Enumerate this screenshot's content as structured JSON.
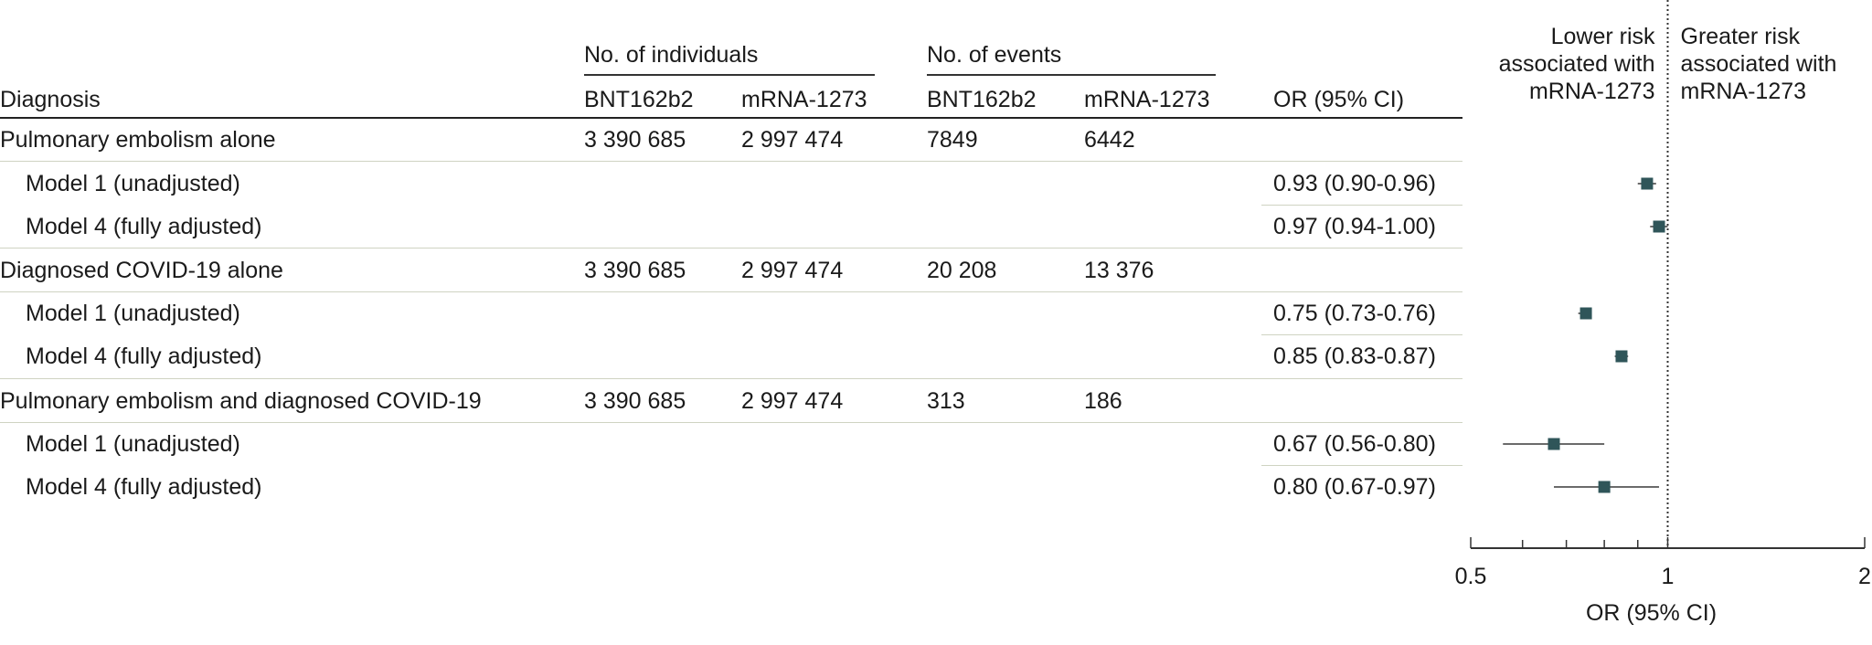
{
  "table": {
    "headers": {
      "diagnosis": "Diagnosis",
      "group_individuals": "No. of individuals",
      "group_events": "No. of events",
      "bnt_individuals": "BNT162b2",
      "mrna_individuals": "mRNA-1273",
      "bnt_events": "BNT162b2",
      "mrna_events": "mRNA-1273",
      "or": "OR (95% CI)"
    },
    "rows": [
      {
        "label": "Pulmonary embolism alone",
        "bnt_n": "3 390 685",
        "mrna_n": "2 997 474",
        "bnt_ev": "7849",
        "mrna_ev": "6442",
        "or": ""
      },
      {
        "label": "Model 1 (unadjusted)",
        "bnt_n": "",
        "mrna_n": "",
        "bnt_ev": "",
        "mrna_ev": "",
        "or": "0.93 (0.90-0.96)"
      },
      {
        "label": "Model 4 (fully adjusted)",
        "bnt_n": "",
        "mrna_n": "",
        "bnt_ev": "",
        "mrna_ev": "",
        "or": "0.97 (0.94-1.00)"
      },
      {
        "label": "Diagnosed COVID-19 alone",
        "bnt_n": "3 390 685",
        "mrna_n": "2 997 474",
        "bnt_ev": "20 208",
        "mrna_ev": "13 376",
        "or": ""
      },
      {
        "label": "Model 1 (unadjusted)",
        "bnt_n": "",
        "mrna_n": "",
        "bnt_ev": "",
        "mrna_ev": "",
        "or": "0.75 (0.73-0.76)"
      },
      {
        "label": "Model 4 (fully adjusted)",
        "bnt_n": "",
        "mrna_n": "",
        "bnt_ev": "",
        "mrna_ev": "",
        "or": "0.85 (0.83-0.87)"
      },
      {
        "label": "Pulmonary embolism and diagnosed COVID-19",
        "bnt_n": "3 390 685",
        "mrna_n": "2 997 474",
        "bnt_ev": "313",
        "mrna_ev": "186",
        "or": ""
      },
      {
        "label": "Model 1 (unadjusted)",
        "bnt_n": "",
        "mrna_n": "",
        "bnt_ev": "",
        "mrna_ev": "",
        "or": "0.67 (0.56-0.80)"
      },
      {
        "label": "Model 4 (fully adjusted)",
        "bnt_n": "",
        "mrna_n": "",
        "bnt_ev": "",
        "mrna_ev": "",
        "or": "0.80 (0.67-0.97)"
      }
    ]
  },
  "chart_data": {
    "type": "scatter",
    "subtype": "forest",
    "x_scale": "log",
    "xlim": [
      0.5,
      2
    ],
    "xticks": [
      0.5,
      1,
      2
    ],
    "xtick_labels": [
      "0.5",
      "1",
      "2"
    ],
    "xlabel": "OR (95% CI)",
    "reference_line": 1,
    "label_left": "Lower risk associated with mRNA-1273",
    "label_left_lines": [
      "Lower risk",
      "associated with",
      "mRNA-1273"
    ],
    "label_right": "Greater risk associated with mRNA-1273",
    "label_right_lines": [
      "Greater risk",
      "associated with",
      "mRNA-1273"
    ],
    "marker_color": "#2f5559",
    "points": [
      {
        "label": "Pulmonary embolism alone - Model 1 (unadjusted)",
        "or": 0.93,
        "lower": 0.9,
        "upper": 0.96
      },
      {
        "label": "Pulmonary embolism alone - Model 4 (fully adjusted)",
        "or": 0.97,
        "lower": 0.94,
        "upper": 1.0
      },
      {
        "label": "Diagnosed COVID-19 alone - Model 1 (unadjusted)",
        "or": 0.75,
        "lower": 0.73,
        "upper": 0.76
      },
      {
        "label": "Diagnosed COVID-19 alone - Model 4 (fully adjusted)",
        "or": 0.85,
        "lower": 0.83,
        "upper": 0.87
      },
      {
        "label": "Pulmonary embolism and diagnosed COVID-19 - Model 1 (unadjusted)",
        "or": 0.67,
        "lower": 0.56,
        "upper": 0.8
      },
      {
        "label": "Pulmonary embolism and diagnosed COVID-19 - Model 4 (fully adjusted)",
        "or": 0.8,
        "lower": 0.67,
        "upper": 0.97
      }
    ]
  }
}
